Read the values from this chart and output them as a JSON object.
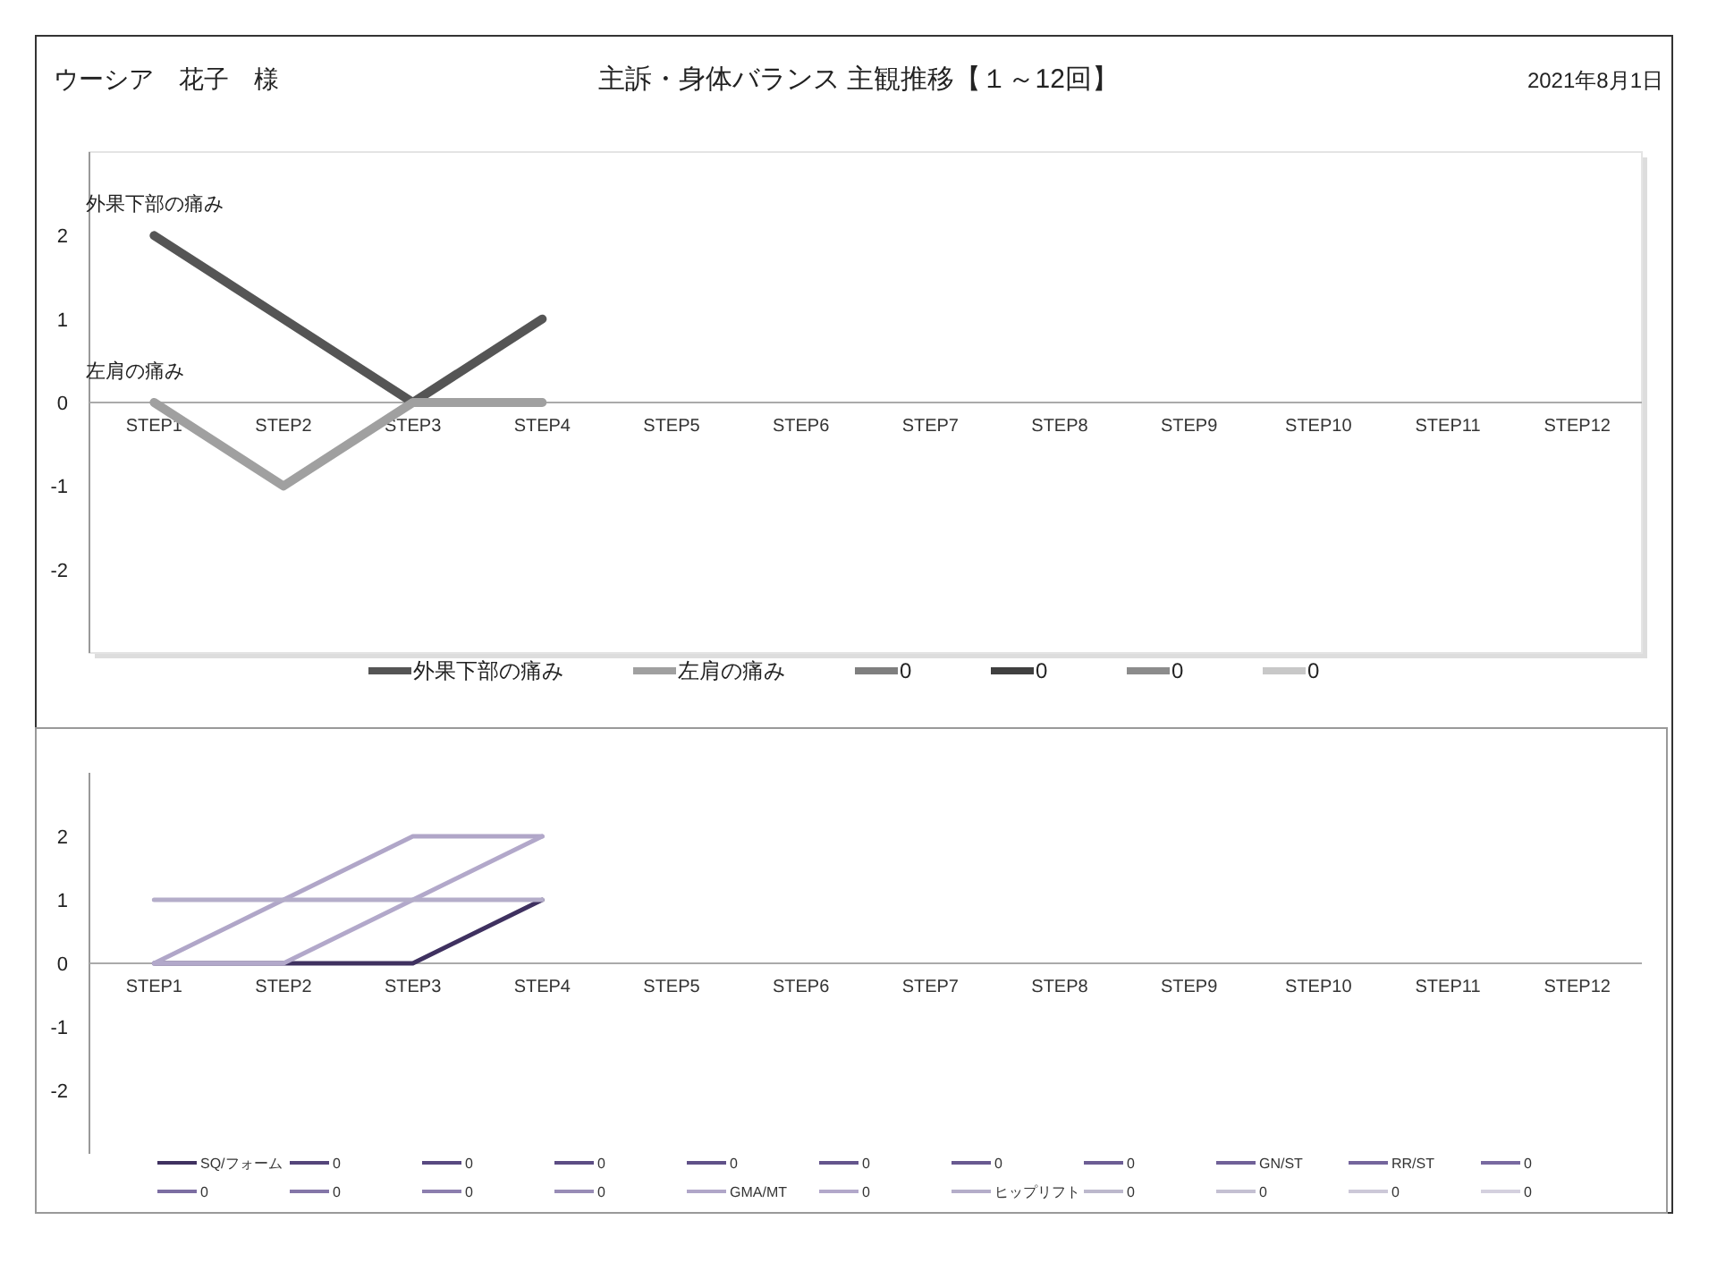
{
  "chart_data": [
    {
      "type": "line",
      "title": "主訴・身体バランス 主観推移【１～12回】",
      "annotations": [
        "ウーシア　花子　様",
        "2021年8月1日",
        {
          "text": "外果下部の痛み",
          "x": "STEP1",
          "y": 2
        },
        {
          "text": "左肩の痛み",
          "x": "STEP1",
          "y": 0
        }
      ],
      "categories": [
        "STEP1",
        "STEP2",
        "STEP3",
        "STEP4",
        "STEP5",
        "STEP6",
        "STEP7",
        "STEP8",
        "STEP9",
        "STEP10",
        "STEP11",
        "STEP12"
      ],
      "ylim": [
        -3,
        3
      ],
      "yticks": [
        -2,
        -1,
        0,
        1,
        2
      ],
      "grid": false,
      "legend": "bottom",
      "series": [
        {
          "name": "外果下部の痛み",
          "color": "#555555",
          "values": [
            2,
            1,
            0,
            1,
            null,
            null,
            null,
            null,
            null,
            null,
            null,
            null
          ]
        },
        {
          "name": "左肩の痛み",
          "color": "#a0a0a0",
          "values": [
            0,
            -1,
            0,
            0,
            null,
            null,
            null,
            null,
            null,
            null,
            null,
            null
          ]
        },
        {
          "name": "0",
          "color": "#7f7f7f",
          "values": [
            null,
            null,
            null,
            null,
            null,
            null,
            null,
            null,
            null,
            null,
            null,
            null
          ]
        },
        {
          "name": "0",
          "color": "#404040",
          "values": [
            null,
            null,
            null,
            null,
            null,
            null,
            null,
            null,
            null,
            null,
            null,
            null
          ]
        },
        {
          "name": "0",
          "color": "#8c8c8c",
          "values": [
            null,
            null,
            null,
            null,
            null,
            null,
            null,
            null,
            null,
            null,
            null,
            null
          ]
        },
        {
          "name": "0",
          "color": "#c8c8c8",
          "values": [
            null,
            null,
            null,
            null,
            null,
            null,
            null,
            null,
            null,
            null,
            null,
            null
          ]
        }
      ]
    },
    {
      "type": "line",
      "categories": [
        "STEP1",
        "STEP2",
        "STEP3",
        "STEP4",
        "STEP5",
        "STEP6",
        "STEP7",
        "STEP8",
        "STEP9",
        "STEP10",
        "STEP11",
        "STEP12"
      ],
      "ylim": [
        -3,
        3
      ],
      "yticks": [
        -2,
        -1,
        0,
        1,
        2
      ],
      "grid": false,
      "legend": "bottom",
      "series": [
        {
          "name": "SQ/フォーム",
          "color": "#3f3160",
          "values": [
            0,
            0,
            0,
            1,
            null,
            null,
            null,
            null,
            null,
            null,
            null,
            null
          ]
        },
        {
          "name": "0",
          "color": "#54457a",
          "values": [
            null,
            null,
            null,
            null,
            null,
            null,
            null,
            null,
            null,
            null,
            null,
            null
          ]
        },
        {
          "name": "0",
          "color": "#584980",
          "values": [
            null,
            null,
            null,
            null,
            null,
            null,
            null,
            null,
            null,
            null,
            null,
            null
          ]
        },
        {
          "name": "0",
          "color": "#5c4d84",
          "values": [
            null,
            null,
            null,
            null,
            null,
            null,
            null,
            null,
            null,
            null,
            null,
            null
          ]
        },
        {
          "name": "0",
          "color": "#605188",
          "values": [
            null,
            null,
            null,
            null,
            null,
            null,
            null,
            null,
            null,
            null,
            null,
            null
          ]
        },
        {
          "name": "0",
          "color": "#64558c",
          "values": [
            null,
            null,
            null,
            null,
            null,
            null,
            null,
            null,
            null,
            null,
            null,
            null
          ]
        },
        {
          "name": "0",
          "color": "#685990",
          "values": [
            null,
            null,
            null,
            null,
            null,
            null,
            null,
            null,
            null,
            null,
            null,
            null
          ]
        },
        {
          "name": "0",
          "color": "#6c5d94",
          "values": [
            null,
            null,
            null,
            null,
            null,
            null,
            null,
            null,
            null,
            null,
            null,
            null
          ]
        },
        {
          "name": "GN/ST",
          "color": "#706198",
          "values": [
            null,
            null,
            null,
            null,
            null,
            null,
            null,
            null,
            null,
            null,
            null,
            null
          ]
        },
        {
          "name": "RR/ST",
          "color": "#74659c",
          "values": [
            null,
            null,
            null,
            null,
            null,
            null,
            null,
            null,
            null,
            null,
            null,
            null
          ]
        },
        {
          "name": "0",
          "color": "#7869a0",
          "values": [
            null,
            null,
            null,
            null,
            null,
            null,
            null,
            null,
            null,
            null,
            null,
            null
          ]
        },
        {
          "name": "0",
          "color": "#7c6ea2",
          "values": [
            null,
            null,
            null,
            null,
            null,
            null,
            null,
            null,
            null,
            null,
            null,
            null
          ]
        },
        {
          "name": "0",
          "color": "#8476a8",
          "values": [
            null,
            null,
            null,
            null,
            null,
            null,
            null,
            null,
            null,
            null,
            null,
            null
          ]
        },
        {
          "name": "0",
          "color": "#8c7eae",
          "values": [
            null,
            null,
            null,
            null,
            null,
            null,
            null,
            null,
            null,
            null,
            null,
            null
          ]
        },
        {
          "name": "0",
          "color": "#988cb6",
          "values": [
            null,
            null,
            null,
            null,
            null,
            null,
            null,
            null,
            null,
            null,
            null,
            null
          ]
        },
        {
          "name": "GMA/MT",
          "color": "#b0a6c8",
          "values": [
            0,
            1,
            2,
            2,
            null,
            null,
            null,
            null,
            null,
            null,
            null,
            null
          ]
        },
        {
          "name": "0",
          "color": "#b2a8ca",
          "values": [
            0,
            0,
            1,
            2,
            null,
            null,
            null,
            null,
            null,
            null,
            null,
            null
          ]
        },
        {
          "name": "ヒップリフト",
          "color": "#b4adc9",
          "values": [
            1,
            1,
            1,
            1,
            null,
            null,
            null,
            null,
            null,
            null,
            null,
            null
          ]
        },
        {
          "name": "0",
          "color": "#bcb8cc",
          "values": [
            null,
            null,
            null,
            null,
            null,
            null,
            null,
            null,
            null,
            null,
            null,
            null
          ]
        },
        {
          "name": "0",
          "color": "#c4c0d2",
          "values": [
            null,
            null,
            null,
            null,
            null,
            null,
            null,
            null,
            null,
            null,
            null,
            null
          ]
        },
        {
          "name": "0",
          "color": "#ccc8d8",
          "values": [
            null,
            null,
            null,
            null,
            null,
            null,
            null,
            null,
            null,
            null,
            null,
            null
          ]
        },
        {
          "name": "0",
          "color": "#d4d0de",
          "values": [
            null,
            null,
            null,
            null,
            null,
            null,
            null,
            null,
            null,
            null,
            null,
            null
          ]
        }
      ]
    }
  ]
}
